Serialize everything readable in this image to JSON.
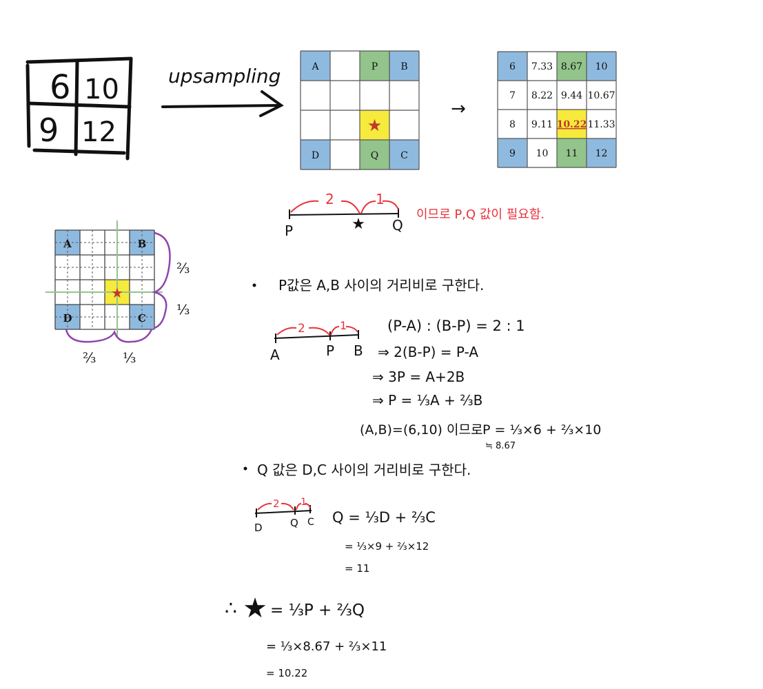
{
  "input_matrix": {
    "cells": [
      "6",
      "10",
      "9",
      "12"
    ]
  },
  "upsampling_label": "upsampling",
  "grid_a": {
    "labels": {
      "a": "A",
      "p": "P",
      "b": "B",
      "d": "D",
      "q": "Q",
      "c": "C"
    },
    "star": "★"
  },
  "arrow_glyph": "→",
  "grid_b": {
    "rows": [
      [
        "6",
        "7.33",
        "8.67",
        "10"
      ],
      [
        "7",
        "8.22",
        "9.44",
        "10.67"
      ],
      [
        "8",
        "9.11",
        "10.22",
        "11.33"
      ],
      [
        "9",
        "10",
        "11",
        "12"
      ]
    ]
  },
  "pq_line": {
    "left_ratio": "2",
    "right_ratio": "1",
    "p_label": "P",
    "q_label": "Q",
    "note": "이므로 P,Q 값이 필요함."
  },
  "ratio_grid": {
    "a": "A",
    "b": "B",
    "d": "D",
    "c": "C",
    "right_top": "⅔",
    "right_bottom": "⅓",
    "bottom_left": "⅔",
    "bottom_right": "⅓"
  },
  "section_p": {
    "heading": "P값은 A,B 사이의 거리비로 구한다.",
    "ab_line": {
      "left_ratio": "2",
      "right_ratio": "1",
      "a": "A",
      "p": "P",
      "b": "B"
    },
    "eq1": "(P-A) : (B-P) = 2 : 1",
    "eq2": "⇒ 2(B-P) = P-A",
    "eq3": "⇒ 3P = A+2B",
    "eq4": "⇒ P = ⅓A + ⅔B",
    "eq5_left": "(A,B)=(6,10) 이므로",
    "eq5_right": "P = ⅓×6 + ⅔×10",
    "eq6": "≒ 8.67"
  },
  "section_q": {
    "heading": "Q 값은 D,C 사이의 거리비로 구한다.",
    "dc_line": {
      "left_ratio": "2",
      "right_ratio": "1",
      "d": "D",
      "q": "Q",
      "c": "C"
    },
    "eq1": "Q = ⅓D + ⅔C",
    "eq2": "= ⅓×9 + ⅔×12",
    "eq3": "= 11"
  },
  "conclusion": {
    "therefore": "∴",
    "eq1": "= ⅓P + ⅔Q",
    "eq2": "= ⅓×8.67 + ⅔×11",
    "eq3": "= 10.22"
  },
  "colors": {
    "blue": "#8fbadf",
    "green": "#93c48b",
    "yellow": "#f6ea3c",
    "red_ink": "#e8323c",
    "purple": "#8e44ad",
    "grid_line": "#555555"
  }
}
